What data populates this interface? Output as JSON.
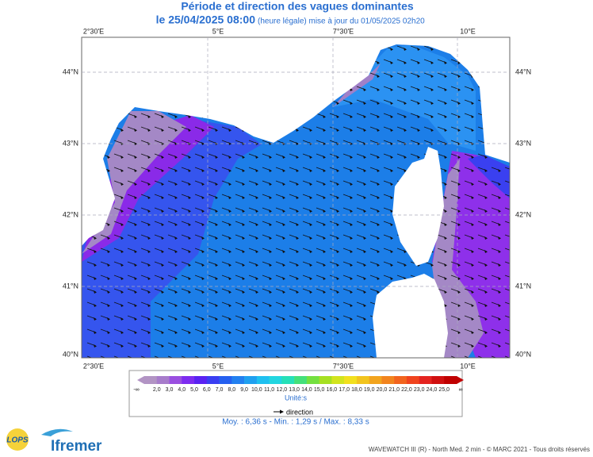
{
  "header": {
    "title": "Période et direction des vagues dominantes",
    "date": "le 25/04/2025 08:00",
    "note": "(heure légale) mise à jour du 01/05/2025 02h20"
  },
  "map": {
    "lon_labels": [
      "2°30'E",
      "5°E",
      "7°30'E",
      "10°E"
    ],
    "lat_labels": [
      "44°N",
      "43°N",
      "42°N",
      "41°N",
      "40°N"
    ]
  },
  "legend": {
    "low": "-∞",
    "high": "∞",
    "labels": [
      "2,0",
      "3,0",
      "4,0",
      "5,0",
      "6,0",
      "7,0",
      "8,0",
      "9,0",
      "10,0",
      "11,0",
      "12,0",
      "13,0",
      "14,0",
      "15,0",
      "16,0",
      "17,0",
      "18,0",
      "19,0",
      "20,0",
      "21,0",
      "22,0",
      "23,0",
      "24,0",
      "25,0"
    ],
    "colors": [
      "#b294c4",
      "#a77ccb",
      "#9a4fe0",
      "#7d2cf0",
      "#5a22f2",
      "#3a3ef2",
      "#2560f0",
      "#2280f0",
      "#1fa0f0",
      "#1fc0f0",
      "#22d6e0",
      "#26e0b8",
      "#44e07a",
      "#74e040",
      "#a6e022",
      "#d2e41e",
      "#f2e01e",
      "#f2c41e",
      "#f2a41e",
      "#f2841e",
      "#f2641e",
      "#f0441e",
      "#e42420",
      "#d01010",
      "#c00000"
    ],
    "unit": "Unité:s",
    "arrow": "direction",
    "stats": "Moy. : 6,36 s   -   Min. : 1,29 s / Max. : 8,33 s"
  },
  "footer": {
    "logo1": "LOPS",
    "logo2": "Ifremer",
    "credits": "WAVEWATCH III (R) - North Med. 2 min - © MARC 2021 - Tous droits réservés"
  }
}
